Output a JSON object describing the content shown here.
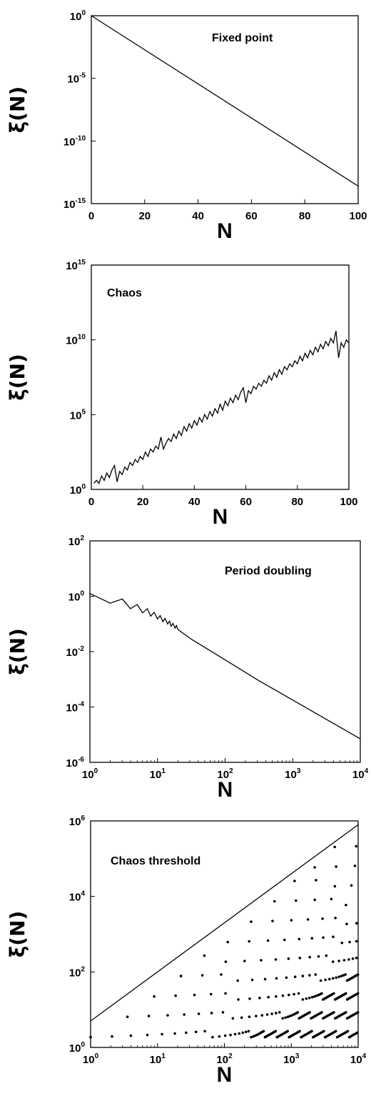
{
  "chart_data": [
    {
      "type": "line",
      "annotation": "Fixed point",
      "xlabel": "N",
      "ylabel": "ξ(N)",
      "xscale": "linear",
      "yscale": "log",
      "xlim": [
        0,
        100
      ],
      "ylim_exp": [
        -15,
        0
      ],
      "xticks": [
        "0",
        "20",
        "40",
        "60",
        "80",
        "100"
      ],
      "yticks": [
        {
          "exp": -15,
          "base": "10",
          "sup": "-15"
        },
        {
          "exp": -10,
          "base": "10",
          "sup": "-10"
        },
        {
          "exp": -5,
          "base": "10",
          "sup": "-5"
        },
        {
          "exp": 0,
          "base": "10",
          "sup": "0"
        }
      ],
      "series": [
        {
          "x": [
            0,
            100
          ],
          "log10_y": [
            0,
            -13.6
          ]
        }
      ]
    },
    {
      "type": "line",
      "annotation": "Chaos",
      "xlabel": "N",
      "ylabel": "ξ(N)",
      "xscale": "linear",
      "yscale": "log",
      "xlim": [
        0,
        100
      ],
      "ylim_exp": [
        0,
        15
      ],
      "xticks": [
        "0",
        "20",
        "40",
        "60",
        "80",
        "100"
      ],
      "yticks": [
        {
          "exp": 0,
          "base": "10",
          "sup": "0"
        },
        {
          "exp": 5,
          "base": "10",
          "sup": "5"
        },
        {
          "exp": 10,
          "base": "10",
          "sup": "10"
        },
        {
          "exp": 15,
          "base": "10",
          "sup": "15"
        }
      ],
      "series": [
        {
          "x": [
            1,
            2,
            3,
            4,
            5,
            6,
            7,
            8,
            9,
            10,
            11,
            12,
            13,
            14,
            15,
            16,
            17,
            18,
            19,
            20,
            21,
            22,
            23,
            24,
            25,
            26,
            27,
            28,
            29,
            30,
            31,
            32,
            33,
            34,
            35,
            36,
            37,
            38,
            39,
            40,
            41,
            42,
            43,
            44,
            45,
            46,
            47,
            48,
            49,
            50,
            51,
            52,
            53,
            54,
            55,
            56,
            57,
            58,
            59,
            60,
            61,
            62,
            63,
            64,
            65,
            66,
            67,
            68,
            69,
            70,
            71,
            72,
            73,
            74,
            75,
            76,
            77,
            78,
            79,
            80,
            81,
            82,
            83,
            84,
            85,
            86,
            87,
            88,
            89,
            90,
            91,
            92,
            93,
            94,
            95,
            96,
            97,
            98,
            99,
            100
          ],
          "log10_y": [
            0.4,
            0.6,
            0.4,
            0.9,
            0.6,
            1.1,
            0.8,
            1.3,
            1.6,
            0.5,
            1.2,
            1.0,
            1.5,
            1.3,
            1.8,
            1.6,
            2.0,
            1.8,
            2.2,
            2.0,
            2.5,
            2.2,
            2.7,
            2.5,
            2.9,
            2.7,
            3.5,
            2.7,
            3.1,
            3.4,
            3.2,
            3.7,
            3.4,
            3.9,
            3.6,
            4.2,
            3.9,
            4.4,
            4.1,
            4.6,
            4.3,
            4.8,
            4.5,
            5.0,
            4.7,
            5.2,
            4.9,
            5.4,
            5.1,
            5.7,
            5.3,
            5.9,
            5.6,
            6.1,
            5.8,
            6.3,
            6.0,
            6.5,
            6.8,
            5.8,
            6.6,
            6.4,
            6.9,
            6.7,
            7.1,
            6.9,
            7.3,
            7.1,
            7.6,
            7.3,
            7.8,
            7.5,
            8.0,
            7.7,
            8.2,
            8.0,
            8.4,
            8.2,
            8.6,
            8.4,
            8.9,
            8.6,
            9.1,
            8.8,
            9.3,
            9.0,
            9.5,
            9.2,
            9.7,
            9.4,
            9.9,
            9.6,
            10.1,
            9.8,
            10.6,
            8.8,
            9.8,
            9.5,
            10.0,
            9.8
          ]
        }
      ]
    },
    {
      "type": "line",
      "annotation": "Period doubling",
      "xlabel": "N",
      "ylabel": "ξ(N)",
      "xscale": "log",
      "yscale": "log",
      "xlim_exp": [
        0,
        4
      ],
      "ylim_exp": [
        -6,
        2
      ],
      "xticks": [
        {
          "exp": 0,
          "base": "10",
          "sup": "0"
        },
        {
          "exp": 1,
          "base": "10",
          "sup": "1"
        },
        {
          "exp": 2,
          "base": "10",
          "sup": "2"
        },
        {
          "exp": 3,
          "base": "10",
          "sup": "3"
        },
        {
          "exp": 4,
          "base": "10",
          "sup": "4"
        }
      ],
      "yticks": [
        {
          "exp": -6,
          "base": "10",
          "sup": "-6"
        },
        {
          "exp": -4,
          "base": "10",
          "sup": "-4"
        },
        {
          "exp": -2,
          "base": "10",
          "sup": "-2"
        },
        {
          "exp": 0,
          "base": "10",
          "sup": "0"
        },
        {
          "exp": 2,
          "base": "10",
          "sup": "2"
        }
      ],
      "series": [
        {
          "log10_x": [
            0.0,
            0.3,
            0.48,
            0.6,
            0.7,
            0.78,
            0.85,
            0.9,
            0.95,
            1.0,
            1.04,
            1.08,
            1.11,
            1.15,
            1.18,
            1.2,
            1.23,
            1.26,
            1.28,
            1.3,
            1.5,
            2.0,
            2.5,
            3.0,
            3.5,
            4.0
          ],
          "log10_y": [
            0.1,
            -0.25,
            -0.1,
            -0.45,
            -0.3,
            -0.6,
            -0.45,
            -0.72,
            -0.58,
            -0.82,
            -0.7,
            -0.92,
            -0.8,
            -1.0,
            -0.9,
            -1.08,
            -0.98,
            -1.15,
            -1.06,
            -1.2,
            -1.55,
            -2.3,
            -3.05,
            -3.75,
            -4.45,
            -5.15
          ]
        }
      ]
    },
    {
      "type": "scatter",
      "annotation": "Chaos threshold",
      "xlabel": "N",
      "ylabel": "ξ(N)",
      "xscale": "log",
      "yscale": "log",
      "xlim_exp": [
        0,
        4
      ],
      "ylim_exp": [
        0,
        6
      ],
      "xticks": [
        {
          "exp": 0,
          "base": "10",
          "sup": "0"
        },
        {
          "exp": 1,
          "base": "10",
          "sup": "1"
        },
        {
          "exp": 2,
          "base": "10",
          "sup": "2"
        },
        {
          "exp": 3,
          "base": "10",
          "sup": "3"
        },
        {
          "exp": 4,
          "base": "10",
          "sup": "4"
        }
      ],
      "yticks": [
        {
          "exp": 0,
          "base": "10",
          "sup": "0"
        },
        {
          "exp": 2,
          "base": "10",
          "sup": "2"
        },
        {
          "exp": 4,
          "base": "10",
          "sup": "4"
        },
        {
          "exp": 6,
          "base": "10",
          "sup": "6"
        }
      ],
      "threshold_line": {
        "log10_x": [
          0,
          4
        ],
        "log10_y": [
          0.7,
          5.9
        ]
      },
      "point_bands": {
        "band_log10_y": [
          0.35,
          0.85,
          1.35,
          1.85,
          2.35,
          2.85,
          3.35,
          3.85,
          4.35,
          4.85,
          5.35
        ],
        "start_log10_x": [
          0.0,
          0.55,
          0.95,
          1.35,
          1.7,
          2.05,
          2.4,
          2.75,
          3.05,
          3.35,
          3.65
        ]
      }
    }
  ]
}
